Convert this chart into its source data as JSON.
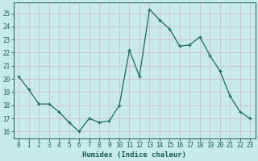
{
  "x": [
    0,
    1,
    2,
    3,
    4,
    5,
    6,
    7,
    8,
    9,
    10,
    11,
    12,
    13,
    14,
    15,
    16,
    17,
    18,
    19,
    20,
    21,
    22,
    23
  ],
  "y": [
    20.2,
    19.2,
    18.1,
    18.1,
    17.5,
    16.7,
    16.0,
    17.0,
    16.7,
    16.8,
    18.0,
    22.2,
    20.2,
    25.3,
    24.5,
    23.8,
    22.5,
    22.6,
    23.2,
    21.8,
    20.6,
    18.7,
    17.5,
    17.0
  ],
  "line_color": "#1a6b5a",
  "marker_color": "#1a6b5a",
  "bg_color": "#c8eaea",
  "grid_color": "#b8d8d8",
  "xlabel": "Humidex (Indice chaleur)",
  "ylim": [
    15.5,
    25.8
  ],
  "xlim": [
    -0.5,
    23.5
  ],
  "yticks": [
    16,
    17,
    18,
    19,
    20,
    21,
    22,
    23,
    24,
    25
  ],
  "xticks": [
    0,
    1,
    2,
    3,
    4,
    5,
    6,
    7,
    8,
    9,
    10,
    11,
    12,
    13,
    14,
    15,
    16,
    17,
    18,
    19,
    20,
    21,
    22,
    23
  ],
  "tick_color": "#1a5f50",
  "label_fontsize": 6.5,
  "tick_fontsize": 5.5
}
